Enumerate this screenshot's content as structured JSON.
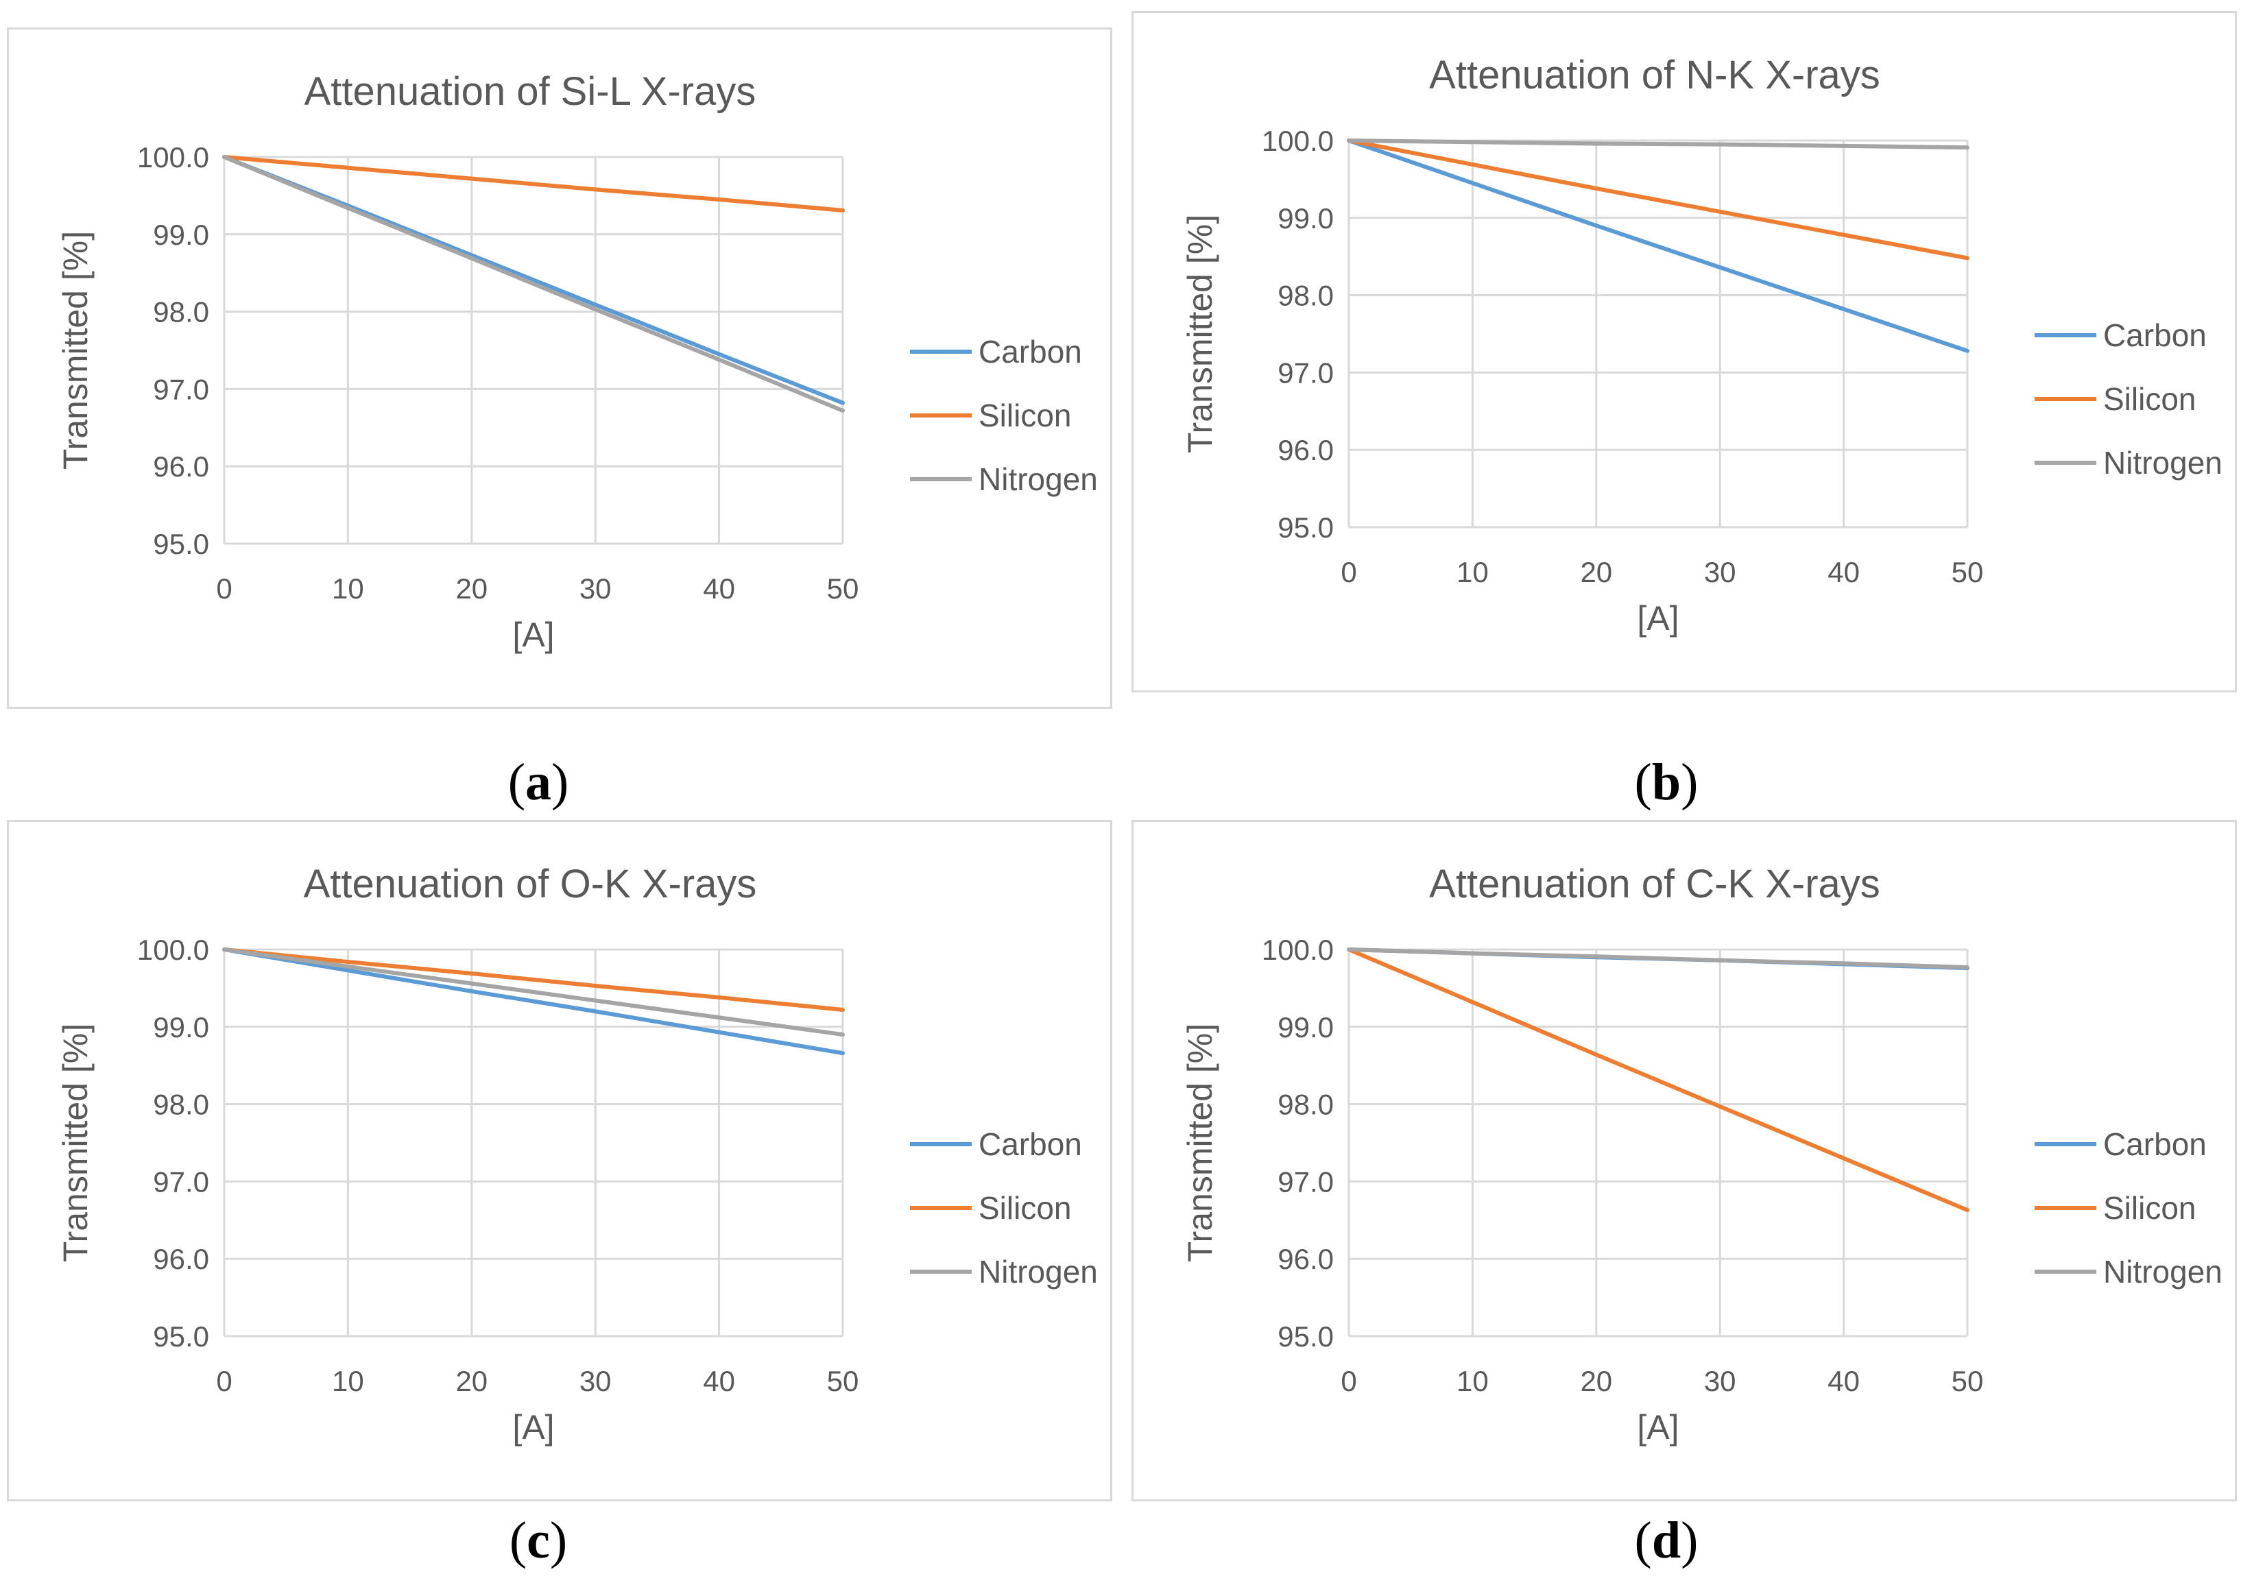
{
  "colors": {
    "Carbon": "#5b9bd5",
    "Silicon": "#ed7d31",
    "Nitrogen": "#a5a5a5"
  },
  "captions": {
    "a": {
      "open": "(",
      "letter": "a",
      "close": ")"
    },
    "b": {
      "open": "(",
      "letter": "b",
      "close": ")"
    },
    "c": {
      "open": "(",
      "letter": "c",
      "close": ")"
    },
    "d": {
      "open": "(",
      "letter": "d",
      "close": ")"
    }
  },
  "chart_data": [
    {
      "id": "a",
      "type": "line",
      "title": "Attenuation of Si-L X-rays",
      "xlabel": "[A]",
      "ylabel": "Transmitted [%]",
      "x": [
        0,
        10,
        20,
        30,
        40,
        50
      ],
      "xticks": [
        "0",
        "10",
        "20",
        "30",
        "40",
        "50"
      ],
      "yticks": [
        "95.0",
        "96.0",
        "97.0",
        "98.0",
        "99.0",
        "100.0"
      ],
      "xlim": [
        0,
        50
      ],
      "ylim": [
        95,
        100
      ],
      "grid": true,
      "legend": "right",
      "series": [
        {
          "name": "Carbon",
          "values": [
            100.0,
            99.37,
            98.73,
            98.09,
            97.45,
            96.82
          ]
        },
        {
          "name": "Silicon",
          "values": [
            100.0,
            99.86,
            99.72,
            99.58,
            99.45,
            99.31
          ]
        },
        {
          "name": "Nitrogen",
          "values": [
            100.0,
            99.34,
            98.69,
            98.03,
            97.38,
            96.72
          ]
        }
      ]
    },
    {
      "id": "b",
      "type": "line",
      "title": "Attenuation of N-K X-rays",
      "xlabel": "[A]",
      "ylabel": "Transmitted [%]",
      "x": [
        0,
        10,
        20,
        30,
        40,
        50
      ],
      "xticks": [
        "0",
        "10",
        "20",
        "30",
        "40",
        "50"
      ],
      "yticks": [
        "95.0",
        "96.0",
        "97.0",
        "98.0",
        "99.0",
        "100.0"
      ],
      "xlim": [
        0,
        50
      ],
      "ylim": [
        95,
        100
      ],
      "grid": true,
      "legend": "right",
      "series": [
        {
          "name": "Carbon",
          "values": [
            100.0,
            99.45,
            98.9,
            98.36,
            97.82,
            97.28
          ]
        },
        {
          "name": "Silicon",
          "values": [
            100.0,
            99.69,
            99.38,
            99.08,
            98.78,
            98.48
          ]
        },
        {
          "name": "Nitrogen",
          "values": [
            100.0,
            99.98,
            99.96,
            99.95,
            99.93,
            99.91
          ]
        }
      ]
    },
    {
      "id": "c",
      "type": "line",
      "title": "Attenuation of O-K X-rays",
      "xlabel": "[A]",
      "ylabel": "Transmitted [%]",
      "x": [
        0,
        10,
        20,
        30,
        40,
        50
      ],
      "xticks": [
        "0",
        "10",
        "20",
        "30",
        "40",
        "50"
      ],
      "yticks": [
        "95.0",
        "96.0",
        "97.0",
        "98.0",
        "99.0",
        "100.0"
      ],
      "xlim": [
        0,
        50
      ],
      "ylim": [
        95,
        100
      ],
      "grid": true,
      "legend": "right",
      "series": [
        {
          "name": "Carbon",
          "values": [
            100.0,
            99.73,
            99.46,
            99.2,
            98.93,
            98.66
          ]
        },
        {
          "name": "Silicon",
          "values": [
            100.0,
            99.84,
            99.69,
            99.53,
            99.38,
            99.22
          ]
        },
        {
          "name": "Nitrogen",
          "values": [
            100.0,
            99.78,
            99.56,
            99.34,
            99.12,
            98.9
          ]
        }
      ]
    },
    {
      "id": "d",
      "type": "line",
      "title": "Attenuation of C-K X-rays",
      "xlabel": "[A]",
      "ylabel": "Transmitted [%]",
      "x": [
        0,
        10,
        20,
        30,
        40,
        50
      ],
      "xticks": [
        "0",
        "10",
        "20",
        "30",
        "40",
        "50"
      ],
      "yticks": [
        "95.0",
        "96.0",
        "97.0",
        "98.0",
        "99.0",
        "100.0"
      ],
      "xlim": [
        0,
        50
      ],
      "ylim": [
        95,
        100
      ],
      "grid": true,
      "legend": "right",
      "series": [
        {
          "name": "Carbon",
          "values": [
            100.0,
            99.95,
            99.9,
            99.86,
            99.81,
            99.76
          ]
        },
        {
          "name": "Silicon",
          "values": [
            100.0,
            99.32,
            98.64,
            97.97,
            97.3,
            96.63
          ]
        },
        {
          "name": "Nitrogen",
          "values": [
            100.0,
            99.95,
            99.91,
            99.86,
            99.82,
            99.77
          ]
        }
      ]
    }
  ]
}
